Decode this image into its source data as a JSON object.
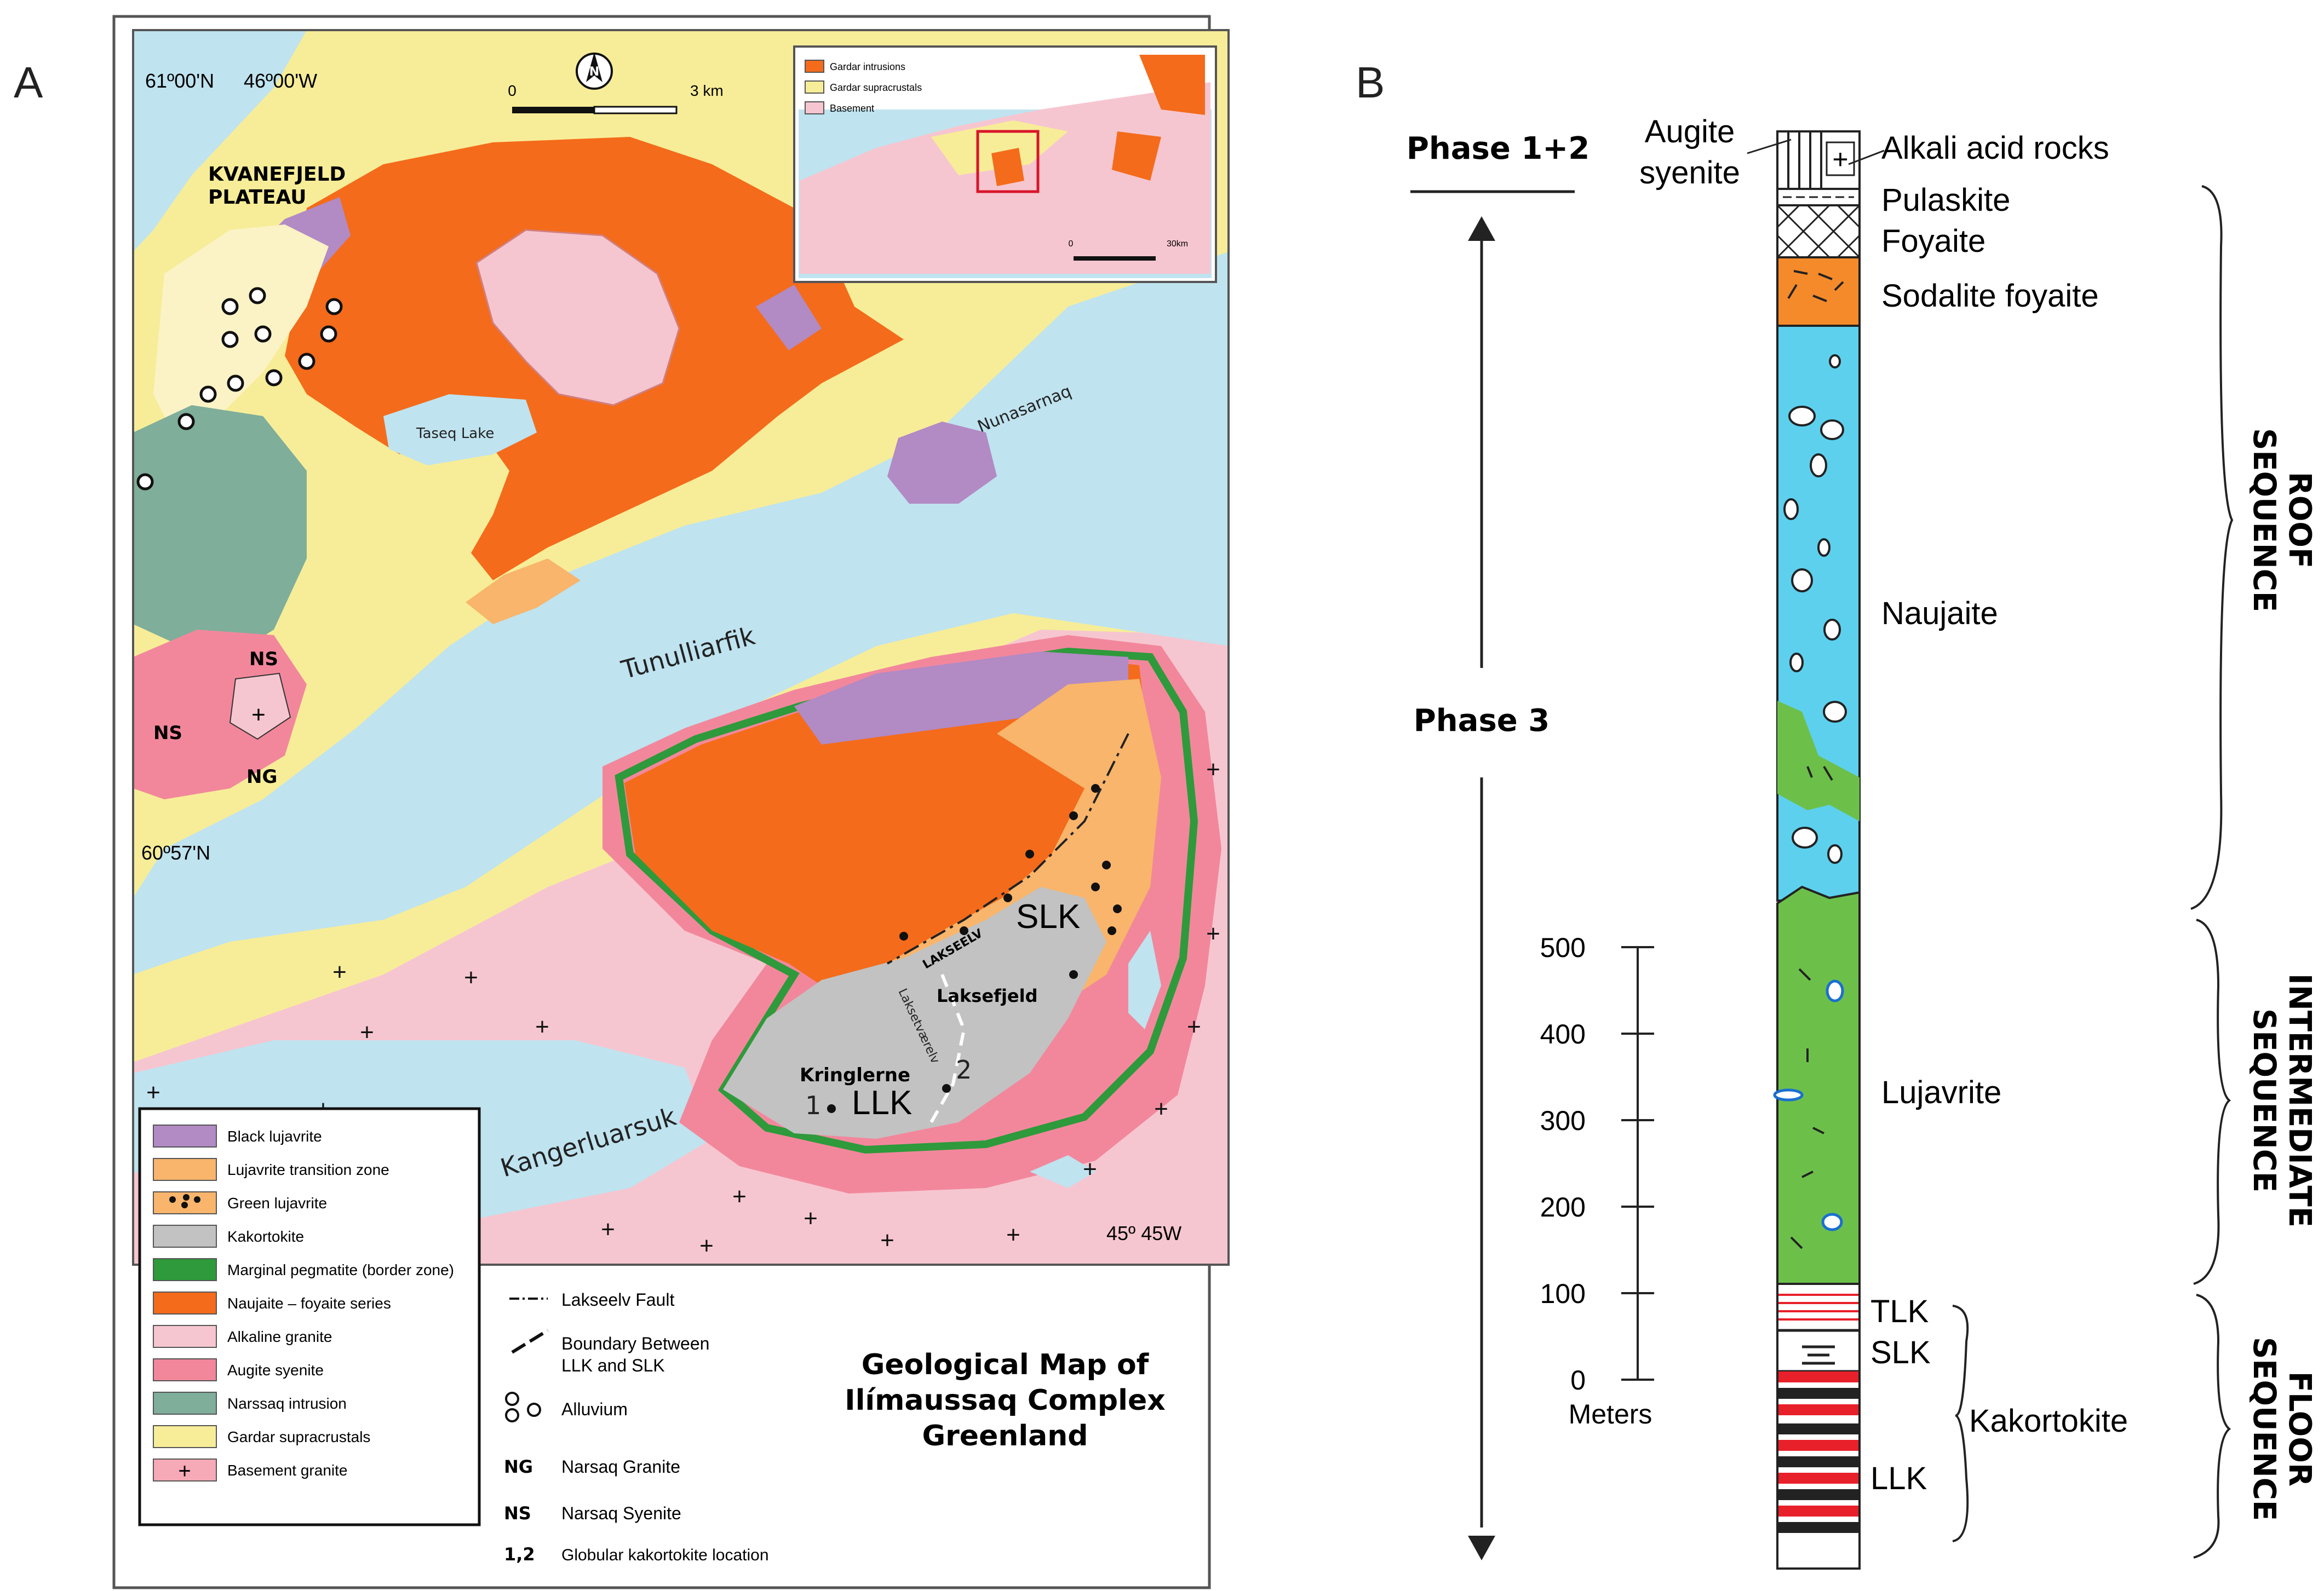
{
  "panels": {
    "a": "A",
    "b": "B"
  },
  "map": {
    "coord_lat_top": "61º00'N",
    "coord_lon_top": "46º00'W",
    "coord_lat_mid": "60º57'N",
    "coord_lon_bottom": "45º 45W",
    "scale_zero": "0",
    "scale_end": "3 km",
    "north_label": "N",
    "places": {
      "kvanefjeld": "KVANEFJELD",
      "plateau": "PLATEAU",
      "taseq": "Taseq Lake",
      "nunasarnaq": "Nunasarnaq",
      "tunulliarfik": "Tunulliarfik",
      "kangerluarsuk": "Kangerluarsuk",
      "slk": "SLK",
      "llk": "LLK",
      "laksefjeld": "Laksefjeld",
      "kringlerne": "Kringlerne",
      "lakseelv": "LAKSEELV",
      "lakseelvaerelv": "Laksetværelv",
      "ns1": "NS",
      "ns2": "NS",
      "ng": "NG",
      "plus": "+",
      "loc1": "1",
      "loc2": "2"
    },
    "inset": {
      "items": [
        "Gardar intrusions",
        "Gardar supracrustals",
        "Basement"
      ],
      "scale_zero": "0",
      "scale_end": "30km"
    },
    "legend": [
      {
        "label": "Black lujavrite",
        "color": "#b28ac4"
      },
      {
        "label": "Lujavrite transition zone",
        "color": "#f8b56b"
      },
      {
        "label": "Green lujavrite",
        "color": "#f8b56b"
      },
      {
        "label": "Kakortokite",
        "color": "#c2c2c2"
      },
      {
        "label": "Marginal pegmatite (border zone)",
        "color": "#2e9a3b"
      },
      {
        "label": "Naujaite – foyaite series",
        "color": "#f46b1b"
      },
      {
        "label": "Alkaline granite",
        "color": "#f6c6d0"
      },
      {
        "label": "Augite syenite",
        "color": "#f2879c"
      },
      {
        "label": "Narssaq intrusion",
        "color": "#7fae9a"
      },
      {
        "label": "Gardar supracrustals",
        "color": "#f7ed98"
      },
      {
        "label": "Basement granite",
        "color": "#f6a9b6"
      }
    ],
    "legend2": {
      "fault": "Lakseelv Fault",
      "boundary1": "Boundary Between",
      "boundary2": "LLK and SLK",
      "alluvium": "Alluvium",
      "ng_key": "NG",
      "ng_label": "Narsaq Granite",
      "ns_key": "NS",
      "ns_label": "Narsaq Syenite",
      "glob_key": "1,2",
      "glob_label": "Globular kakortokite location"
    },
    "title_lines": [
      "Geological Map of",
      "Ilímaussaq Complex",
      "Greenland"
    ]
  },
  "column": {
    "phase12": "Phase 1+2",
    "phase3": "Phase 3",
    "labels": {
      "augite1": "Augite",
      "augite2": "syenite",
      "alkali": "Alkali acid rocks",
      "pulaskite": "Pulaskite",
      "foyaite": "Foyaite",
      "sodalite": "Sodalite foyaite",
      "naujaite": "Naujaite",
      "lujavrite": "Lujavrite",
      "tlk": "TLK",
      "slk": "SLK",
      "llk": "LLK",
      "kakortokite": "Kakortokite"
    },
    "sequences": [
      {
        "l1": "ROOF",
        "l2": "SEQUENCE"
      },
      {
        "l1": "INTERMEDIATE",
        "l2": "SEQUENCE"
      },
      {
        "l1": "FLOOR",
        "l2": "SEQUENCE"
      }
    ],
    "scale_ticks": [
      "500",
      "400",
      "300",
      "200",
      "100",
      "0"
    ],
    "scale_unit": "Meters",
    "colors": {
      "naujaite": "#5dd0ee",
      "lujavrite": "#6cc04a",
      "sodalite": "#f58a2a",
      "kakortokite_red": "#e8202a"
    }
  }
}
